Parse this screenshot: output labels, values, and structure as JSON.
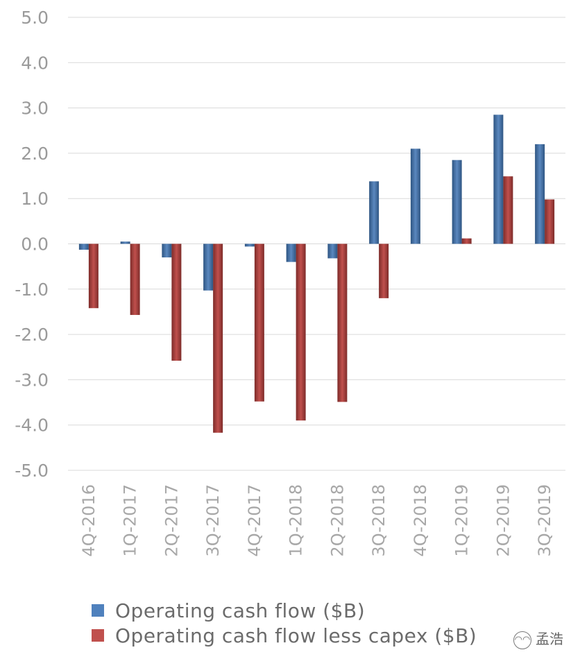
{
  "chart_data": {
    "type": "bar",
    "categories": [
      "4Q-2016",
      "1Q-2017",
      "2Q-2017",
      "3Q-2017",
      "4Q-2017",
      "1Q-2018",
      "2Q-2018",
      "3Q-2018",
      "4Q-2018",
      "1Q-2019",
      "2Q-2019",
      "3Q-2019"
    ],
    "series": [
      {
        "name": "Operating cash flow ($B)",
        "color": "#4f81bd",
        "values": [
          -0.13,
          0.05,
          -0.3,
          -1.03,
          -0.06,
          -0.4,
          -0.32,
          1.38,
          2.1,
          1.85,
          2.85,
          2.2
        ]
      },
      {
        "name": "Operating cash flow less capex ($B)",
        "color": "#c0504d",
        "values": [
          -1.42,
          -1.57,
          -2.58,
          -4.17,
          -3.48,
          -3.9,
          -3.49,
          -1.2,
          0.0,
          0.12,
          1.49,
          0.98
        ]
      }
    ],
    "yticks": [
      "5.0",
      "4.0",
      "3.0",
      "2.0",
      "1.0",
      "0.0",
      "-1.0",
      "-2.0",
      "-3.0",
      "-4.0",
      "-5.0"
    ],
    "ylim": [
      -5,
      5
    ],
    "grid": true,
    "legend": "bottom-left",
    "title": "",
    "xlabel": "",
    "ylabel": ""
  },
  "watermark": {
    "icon": "wechat-logo-icon",
    "text": "孟浩"
  }
}
